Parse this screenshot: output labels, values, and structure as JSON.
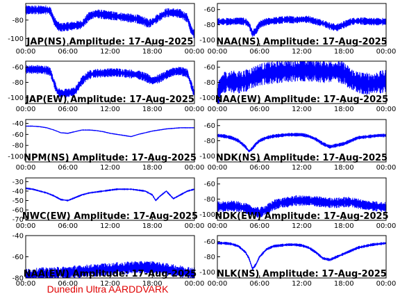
{
  "colors": {
    "trace": "#0000ff",
    "frame": "#000000",
    "caption": "#e00000"
  },
  "caption": "Dunedin Ultra AARDDVARK",
  "chart_data": [
    {
      "type": "line",
      "title": "JAP(NS) Amplitude: 17-Aug-2025",
      "x_ticks": [
        "00:00",
        "06:00",
        "12:00",
        "18:00",
        "00:00"
      ],
      "y_ticks": [
        -80,
        -100
      ],
      "ylim": [
        -108,
        -62
      ],
      "trace": {
        "hours": [
          0,
          1,
          2,
          3,
          3.5,
          4,
          4.5,
          5,
          6,
          7,
          8,
          9,
          10,
          11,
          12,
          13,
          14,
          15,
          16,
          17,
          17.5,
          18,
          19,
          20,
          21,
          22,
          23,
          23.5,
          24
        ],
        "values": [
          -69,
          -69,
          -69,
          -69,
          -70,
          -80,
          -86,
          -88,
          -87,
          -86,
          -85,
          -76,
          -73,
          -74,
          -75,
          -76,
          -77,
          -78,
          -79,
          -82,
          -84,
          -82,
          -77,
          -72,
          -72,
          -73,
          -78,
          -90,
          -96
        ],
        "noise": 10
      }
    },
    {
      "type": "line",
      "title": "NAA(NS) Amplitude: 17-Aug-2025",
      "x_ticks": [
        "00:00",
        "06:00",
        "12:00",
        "18:00",
        "00:00"
      ],
      "y_ticks": [
        -60,
        -80,
        -100
      ],
      "ylim": [
        -108,
        -52
      ],
      "trace": {
        "hours": [
          0,
          2,
          3,
          4,
          4.5,
          5,
          5.5,
          6,
          7,
          8,
          9,
          10,
          11,
          12,
          13,
          14,
          15,
          16,
          17,
          18,
          19,
          20,
          22,
          24
        ],
        "values": [
          -76,
          -76,
          -75,
          -76,
          -80,
          -92,
          -88,
          -80,
          -76,
          -75,
          -74,
          -73,
          -74,
          -73,
          -73,
          -76,
          -78,
          -82,
          -84,
          -80,
          -76,
          -75,
          -76,
          -76
        ],
        "noise": 10
      }
    },
    {
      "type": "line",
      "title": "JAP(EW) Amplitude: 17-Aug-2025",
      "x_ticks": [
        "00:00",
        "06:00",
        "12:00",
        "18:00",
        "00:00"
      ],
      "y_ticks": [
        -60,
        -80,
        -100
      ],
      "ylim": [
        -108,
        -52
      ],
      "trace": {
        "hours": [
          0,
          1,
          2,
          3,
          3.5,
          4,
          4.5,
          5,
          6,
          7,
          8,
          9,
          10,
          11,
          12,
          13,
          14,
          15,
          16,
          17,
          18,
          19,
          20,
          21,
          22,
          23,
          23.5,
          24
        ],
        "values": [
          -63,
          -63,
          -63,
          -64,
          -66,
          -80,
          -92,
          -95,
          -94,
          -92,
          -78,
          -70,
          -68,
          -68,
          -67,
          -67,
          -68,
          -69,
          -70,
          -73,
          -78,
          -75,
          -70,
          -66,
          -65,
          -68,
          -82,
          -96
        ],
        "noise": 12
      }
    },
    {
      "type": "line",
      "title": "NAA(EW) Amplitude: 17-Aug-2025",
      "x_ticks": [
        "00:00",
        "06:00",
        "12:00",
        "18:00",
        "00:00"
      ],
      "y_ticks": [
        -60,
        -80,
        -100
      ],
      "ylim": [
        -108,
        -52
      ],
      "trace": {
        "hours": [
          0,
          0.5,
          1,
          2,
          3,
          4,
          5,
          6,
          7,
          8,
          9,
          10,
          11,
          12,
          13,
          14,
          15,
          16,
          17,
          18,
          19,
          20,
          21,
          22,
          23,
          24
        ],
        "values": [
          -100,
          -84,
          -80,
          -79,
          -80,
          -78,
          -74,
          -70,
          -68,
          -67,
          -66,
          -65,
          -65,
          -64,
          -64,
          -65,
          -66,
          -66,
          -65,
          -68,
          -76,
          -80,
          -82,
          -82,
          -80,
          -78
        ],
        "noise": 30
      }
    },
    {
      "type": "line",
      "title": "NPM(NS) Amplitude: 17-Aug-2025",
      "x_ticks": [
        "00:00",
        "06:00",
        "12:00",
        "18:00",
        "00:00"
      ],
      "y_ticks": [
        -40,
        -60,
        -80,
        -100
      ],
      "ylim": [
        -110,
        -33
      ],
      "trace": {
        "hours": [
          0,
          1,
          2,
          3,
          4,
          5,
          6,
          7,
          8,
          9,
          10,
          11,
          12,
          13,
          14,
          15,
          16,
          17,
          18,
          19,
          20,
          21,
          22,
          23,
          24
        ],
        "values": [
          -45,
          -45,
          -46,
          -48,
          -52,
          -57,
          -58,
          -55,
          -52,
          -52,
          -53,
          -55,
          -58,
          -60,
          -62,
          -64,
          -60,
          -57,
          -54,
          -52,
          -50,
          -49,
          -48,
          -48,
          -48
        ],
        "noise": 2
      }
    },
    {
      "type": "line",
      "title": "NDK(NS) Amplitude: 17-Aug-2025",
      "x_ticks": [
        "00:00",
        "06:00",
        "12:00",
        "18:00",
        "00:00"
      ],
      "y_ticks": [
        -60,
        -80,
        -100
      ],
      "ylim": [
        -108,
        -52
      ],
      "trace": {
        "hours": [
          0,
          1,
          2,
          3,
          4,
          4.5,
          5,
          5.5,
          6,
          7,
          8,
          9,
          10,
          11,
          12,
          13,
          14,
          15,
          16,
          17,
          18,
          19,
          20,
          21,
          22,
          23,
          24
        ],
        "values": [
          -73,
          -74,
          -76,
          -80,
          -88,
          -94,
          -90,
          -84,
          -80,
          -76,
          -74,
          -73,
          -72,
          -72,
          -72,
          -74,
          -78,
          -84,
          -88,
          -86,
          -84,
          -80,
          -76,
          -75,
          -74,
          -73,
          -73
        ],
        "noise": 5
      }
    },
    {
      "type": "line",
      "title": "NWC(EW) Amplitude: 17-Aug-2025",
      "x_ticks": [
        "00:00",
        "06:00",
        "12:00",
        "18:00",
        "00:00"
      ],
      "y_ticks": [
        -30,
        -40,
        -50,
        -60,
        -70
      ],
      "ylim": [
        -71,
        -26
      ],
      "trace": {
        "hours": [
          0,
          1,
          2,
          3,
          4,
          5,
          6,
          7,
          8,
          9,
          10,
          11,
          12,
          13,
          14,
          15,
          16,
          17,
          18,
          18.5,
          19,
          20,
          21,
          22,
          23,
          24
        ],
        "values": [
          -37,
          -38,
          -40,
          -42,
          -45,
          -49,
          -50,
          -47,
          -44,
          -42,
          -41,
          -40,
          -39,
          -38,
          -38,
          -38,
          -39,
          -40,
          -44,
          -50,
          -46,
          -40,
          -48,
          -44,
          -40,
          -38
        ],
        "noise": 2
      }
    },
    {
      "type": "line",
      "title": "NDK(EW) Amplitude: 17-Aug-2025",
      "x_ticks": [
        "00:00",
        "06:00",
        "12:00",
        "18:00",
        "00:00"
      ],
      "y_ticks": [
        -60,
        -80,
        -100
      ],
      "ylim": [
        -108,
        -52
      ],
      "trace": {
        "hours": [
          0,
          1,
          2,
          3,
          4,
          5,
          6,
          7,
          8,
          9,
          10,
          11,
          12,
          13,
          14,
          15,
          16,
          17,
          18,
          19,
          20,
          21,
          22,
          23,
          24
        ],
        "values": [
          -90,
          -90,
          -89,
          -90,
          -92,
          -96,
          -98,
          -94,
          -88,
          -85,
          -84,
          -82,
          -82,
          -82,
          -83,
          -84,
          -85,
          -85,
          -84,
          -84,
          -86,
          -88,
          -89,
          -90,
          -91
        ],
        "noise": 14
      }
    },
    {
      "type": "line",
      "title": "NAA(EW) Amplitude: 17-Aug-2025",
      "x_ticks": [
        "00:00",
        "06:00",
        "12:00",
        "18:00",
        "00:00"
      ],
      "y_ticks": [
        -40,
        -60,
        -80
      ],
      "ylim": [
        -80,
        -40
      ],
      "trace": {
        "hours": [
          0,
          1,
          2,
          3,
          4,
          5,
          6,
          7,
          8,
          9,
          10,
          11,
          12,
          13,
          14,
          15,
          16,
          17,
          18,
          19,
          20,
          21,
          22,
          23,
          24
        ],
        "values": [
          -77,
          -77,
          -76,
          -76,
          -76,
          -75,
          -75,
          -74,
          -74,
          -73,
          -73,
          -72,
          -72,
          -71,
          -71,
          -70,
          -70,
          -70,
          -70,
          -71,
          -72,
          -73,
          -74,
          -75,
          -76
        ],
        "noise": 12
      }
    },
    {
      "type": "line",
      "title": "NLK(NS) Amplitude: 17-Aug-2025",
      "x_ticks": [
        "00:00",
        "06:00",
        "12:00",
        "18:00",
        "00:00"
      ],
      "y_ticks": [
        -60,
        -80,
        -100
      ],
      "ylim": [
        -108,
        -52
      ],
      "trace": {
        "hours": [
          0,
          1,
          2,
          3,
          4,
          4.5,
          5,
          5.5,
          6,
          7,
          8,
          9,
          10,
          11,
          12,
          13,
          14,
          15,
          16,
          17,
          18,
          19,
          20,
          21,
          22,
          23,
          24
        ],
        "values": [
          -62,
          -62,
          -63,
          -66,
          -74,
          -82,
          -96,
          -90,
          -80,
          -70,
          -66,
          -65,
          -64,
          -64,
          -65,
          -68,
          -74,
          -82,
          -84,
          -80,
          -76,
          -72,
          -68,
          -66,
          -64,
          -63,
          -62
        ],
        "noise": 4
      }
    }
  ]
}
